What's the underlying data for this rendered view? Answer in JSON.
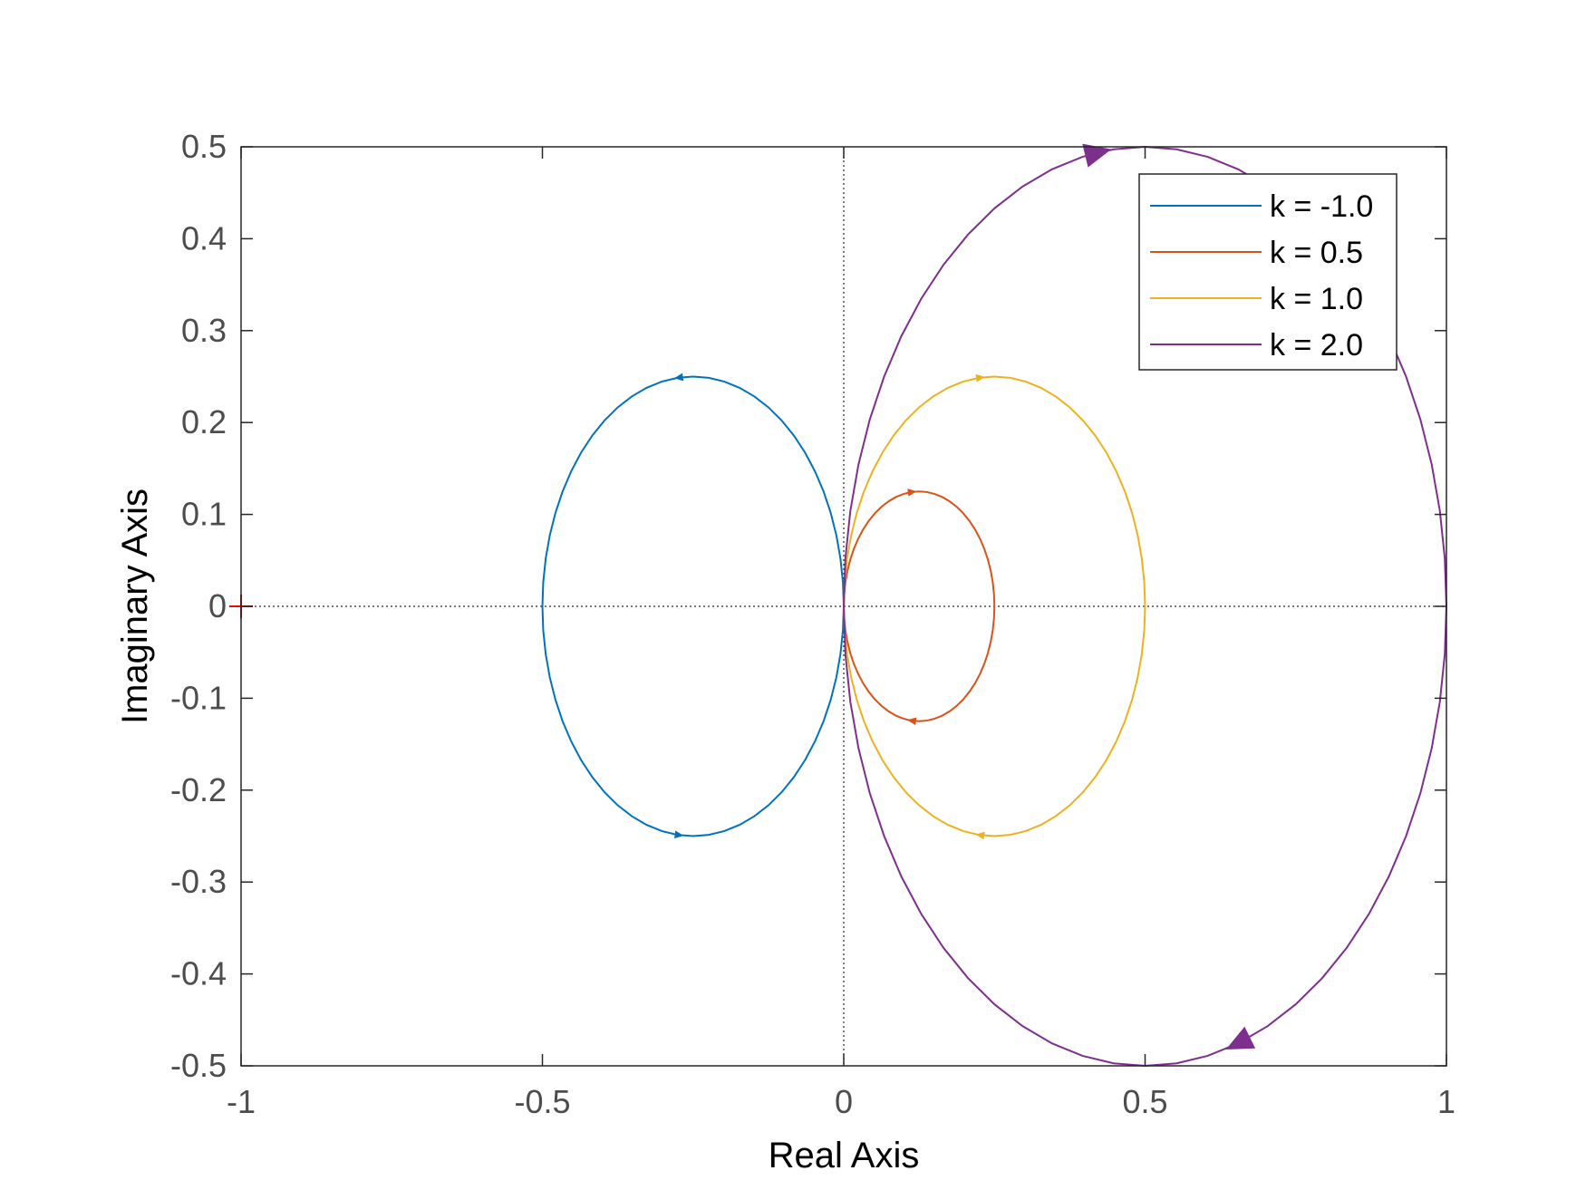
{
  "chart_data": {
    "type": "line",
    "title": "",
    "xlabel": "Real Axis",
    "ylabel": "Imaginary Axis",
    "xlim": [
      -1,
      1
    ],
    "ylim": [
      -0.5,
      0.5
    ],
    "x_ticks": [
      -1,
      -0.5,
      0,
      0.5,
      1
    ],
    "x_tick_labels": [
      "-1",
      "-0.5",
      "0",
      "0.5",
      "1"
    ],
    "y_ticks": [
      -0.5,
      -0.4,
      -0.3,
      -0.2,
      -0.1,
      0,
      0.1,
      0.2,
      0.3,
      0.4,
      0.5
    ],
    "y_tick_labels": [
      "-0.5",
      "-0.4",
      "-0.3",
      "-0.2",
      "-0.1",
      "0",
      "0.1",
      "0.2",
      "0.3",
      "0.4",
      "0.5"
    ],
    "grid": false,
    "zero_lines": true,
    "legend_position": "top-right",
    "critical_point": {
      "x": -1,
      "y": 0,
      "color": "#ff0000"
    },
    "series": [
      {
        "name": "k = -1.0",
        "color": "#0072bd",
        "center": [
          -0.25,
          0
        ],
        "radius": 0.25,
        "direction": "counterclockwise"
      },
      {
        "name": "k = 0.5",
        "color": "#d95319",
        "center": [
          0.125,
          0
        ],
        "radius": 0.125,
        "direction": "clockwise"
      },
      {
        "name": "k = 1.0",
        "color": "#edb120",
        "center": [
          0.25,
          0
        ],
        "radius": 0.25,
        "direction": "clockwise"
      },
      {
        "name": "k = 2.0",
        "color": "#7e2f8e",
        "center": [
          0.5,
          0
        ],
        "radius": 0.5,
        "direction": "clockwise"
      }
    ]
  }
}
